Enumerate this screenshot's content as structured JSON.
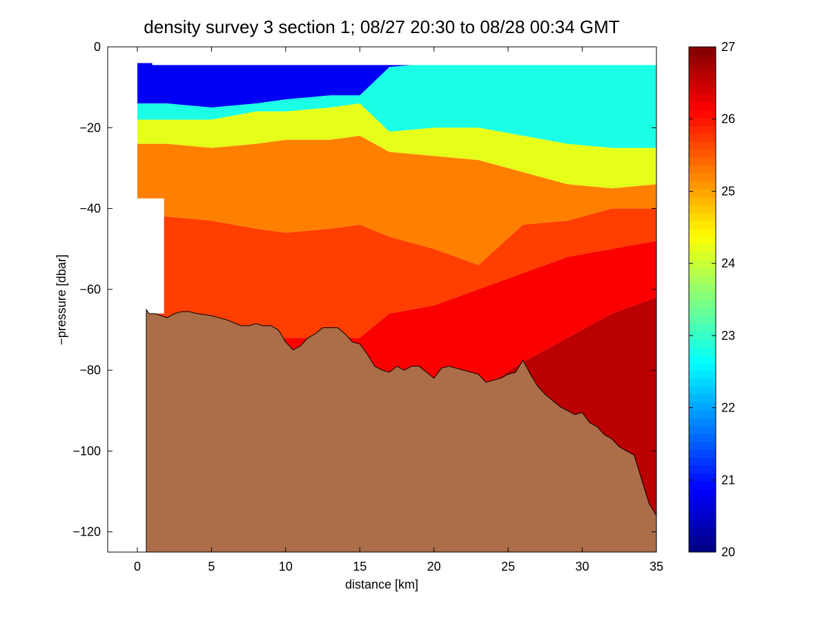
{
  "chart_data": {
    "type": "heatmap",
    "title": "density survey 3 section 1; 08/27 20:30 to 08/28 00:34 GMT",
    "xlabel": "distance [km]",
    "ylabel": "−pressure [dbar]",
    "xlim": [
      -2,
      35
    ],
    "ylim": [
      -125,
      0
    ],
    "xticks": [
      0,
      5,
      10,
      15,
      20,
      25,
      30,
      35
    ],
    "xtick_labels": [
      "0",
      "5",
      "10",
      "15",
      "20",
      "25",
      "30",
      "35"
    ],
    "yticks": [
      0,
      -20,
      -40,
      -60,
      -80,
      -100,
      -120
    ],
    "ytick_labels": [
      "0",
      "−20",
      "−40",
      "−60",
      "−80",
      "−100",
      "−120"
    ],
    "colorbar": {
      "range": [
        20,
        27
      ],
      "ticks": [
        20,
        21,
        22,
        23,
        24,
        25,
        26,
        27
      ],
      "tick_labels": [
        "20",
        "21",
        "22",
        "23",
        "24",
        "25",
        "26",
        "27"
      ],
      "colormap": "jet"
    },
    "isopycnal_depths": {
      "x": [
        0,
        2,
        5,
        8,
        10,
        13,
        15,
        17,
        20,
        23,
        26,
        29,
        32,
        35
      ],
      "sigma_22_5": [
        -14,
        -14,
        -15,
        -14,
        -13,
        -12,
        -12,
        -5,
        -4,
        -4,
        -4,
        -4,
        -4,
        -4
      ],
      "sigma_24": [
        -18,
        -18,
        -18,
        -16,
        -16,
        -15,
        -14,
        -21,
        -20,
        -20,
        -22,
        -24,
        -25,
        -25
      ],
      "sigma_25": [
        -24,
        -24,
        -25,
        -24,
        -23,
        -23,
        -22,
        -26,
        -27,
        -28,
        -31,
        -34,
        -35,
        -34
      ],
      "sigma_25_5": [
        -42,
        -42,
        -43,
        -45,
        -46,
        -45,
        -44,
        -47,
        -50,
        -54,
        -44,
        -43,
        -40,
        -40
      ],
      "sigma_26": [
        -72,
        -72,
        -72,
        -72,
        -72,
        -72,
        -72,
        -66,
        -64,
        -60,
        -56,
        -52,
        -50,
        -48
      ],
      "sigma_26_5": [
        -100,
        -100,
        -100,
        -100,
        -100,
        -100,
        -100,
        -100,
        -95,
        -85,
        -78,
        -72,
        -66,
        -62
      ]
    },
    "bottom_profile": {
      "x": [
        0.6,
        0.8,
        1.2,
        1.6,
        2.0,
        2.5,
        3.0,
        3.5,
        4.0,
        5.0,
        6.0,
        7.0,
        7.5,
        8.0,
        8.5,
        9.0,
        9.5,
        10.0,
        10.5,
        11.0,
        11.5,
        12.0,
        12.5,
        13.0,
        13.5,
        14.0,
        14.5,
        15.0,
        15.5,
        16.0,
        16.5,
        17.0,
        17.5,
        18.0,
        18.5,
        19.0,
        19.5,
        20.0,
        20.5,
        21.0,
        21.5,
        22.0,
        22.5,
        23.0,
        23.5,
        24.0,
        24.5,
        25.0,
        25.5,
        26.0,
        26.5,
        27.0,
        27.5,
        28.0,
        28.5,
        29.0,
        29.5,
        30.0,
        30.5,
        31.0,
        31.5,
        32.0,
        32.5,
        33.0,
        33.5,
        34.0,
        34.5,
        35.0
      ],
      "depth": [
        -65,
        -66,
        -66,
        -66.5,
        -67,
        -66,
        -65.5,
        -65.5,
        -66,
        -66.5,
        -67.5,
        -69,
        -69,
        -68.5,
        -69,
        -69,
        -70,
        -73,
        -75,
        -74,
        -72,
        -71,
        -69.5,
        -69.5,
        -69.5,
        -71,
        -73,
        -73.5,
        -76,
        -79,
        -80,
        -80.5,
        -79,
        -80,
        -79,
        -79,
        -80.5,
        -82,
        -79.5,
        -79,
        -79.5,
        -80,
        -80.5,
        -81,
        -83,
        -82.5,
        -82,
        -81,
        -80.5,
        -77.5,
        -81,
        -84,
        -86,
        -87.5,
        -89,
        -90,
        -91,
        -90.5,
        -93,
        -94,
        -96,
        -97,
        -99,
        -100,
        -101,
        -107,
        -113,
        -116
      ],
      "color": "#ab6e48"
    }
  }
}
